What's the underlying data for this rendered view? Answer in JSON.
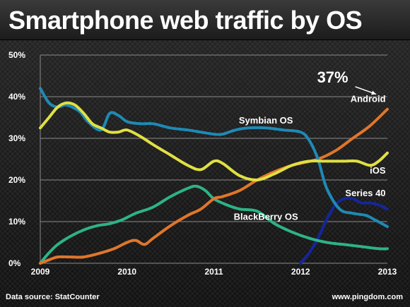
{
  "title": "Smartphone web traffic by OS",
  "source": "Data source: StatCounter",
  "site": "www.pingdom.com",
  "callout": "37%",
  "colors": {
    "Symbian OS": "#1e8ab5",
    "iOS": "#e0e043",
    "Android": "#e0762a",
    "BlackBerry OS": "#2db387",
    "Series 40": "#15269a"
  },
  "chart_data": {
    "type": "line",
    "x_ticks": [
      "2009",
      "2010",
      "2011",
      "2012",
      "2013"
    ],
    "y_ticks": [
      "0%",
      "10%",
      "20%",
      "30%",
      "40%",
      "50%"
    ],
    "ylim": [
      0,
      50
    ],
    "xlim": [
      2009,
      2013
    ],
    "grid": true,
    "series": [
      {
        "name": "Symbian OS",
        "x": [
          2009,
          2009.1,
          2009.2,
          2009.3,
          2009.45,
          2009.55,
          2009.7,
          2009.8,
          2009.9,
          2010.0,
          2010.15,
          2010.3,
          2010.5,
          2010.7,
          2010.85,
          2011.0,
          2011.1,
          2011.25,
          2011.4,
          2011.6,
          2011.8,
          2012.0,
          2012.1,
          2012.2,
          2012.3,
          2012.45,
          2012.6,
          2012.75,
          2012.85,
          2013.0
        ],
        "y": [
          42,
          38.5,
          37.5,
          38,
          36.5,
          34,
          32,
          36,
          35.5,
          34,
          33.5,
          33.5,
          32.5,
          32,
          31.5,
          31,
          31,
          32,
          32.5,
          32.5,
          32,
          31.5,
          29.5,
          25,
          18,
          13,
          12,
          11.5,
          10.5,
          8.8
        ]
      },
      {
        "name": "iOS",
        "x": [
          2009,
          2009.1,
          2009.2,
          2009.3,
          2009.4,
          2009.5,
          2009.6,
          2009.7,
          2009.8,
          2009.9,
          2010.0,
          2010.15,
          2010.3,
          2010.5,
          2010.7,
          2010.85,
          2011.0,
          2011.1,
          2011.3,
          2011.5,
          2011.7,
          2011.9,
          2012.1,
          2012.3,
          2012.5,
          2012.65,
          2012.8,
          2012.9,
          2013.0
        ],
        "y": [
          32.5,
          35,
          37.5,
          38.5,
          38,
          36,
          33.5,
          32.5,
          31.5,
          31.5,
          32,
          30.5,
          28.5,
          26,
          23.5,
          22.5,
          24.5,
          24,
          21,
          20,
          21.5,
          23.5,
          24.5,
          24.5,
          24.5,
          24.5,
          23.5,
          24.5,
          26.5
        ]
      },
      {
        "name": "Android",
        "x": [
          2009,
          2009.1,
          2009.2,
          2009.35,
          2009.5,
          2009.7,
          2009.85,
          2010.0,
          2010.1,
          2010.2,
          2010.3,
          2010.5,
          2010.7,
          2010.85,
          2011.0,
          2011.1,
          2011.3,
          2011.5,
          2011.7,
          2011.9,
          2012.0,
          2012.2,
          2012.4,
          2012.6,
          2012.8,
          2013.0
        ],
        "y": [
          0,
          0.8,
          1.5,
          1.5,
          1.5,
          2.5,
          3.5,
          5,
          5.5,
          4.5,
          6,
          9,
          11.5,
          13,
          15.5,
          16,
          17.5,
          20,
          22,
          23.5,
          24,
          25,
          27,
          30,
          33,
          37
        ]
      },
      {
        "name": "BlackBerry OS",
        "x": [
          2009,
          2009.1,
          2009.2,
          2009.35,
          2009.5,
          2009.65,
          2009.8,
          2009.95,
          2010.1,
          2010.3,
          2010.5,
          2010.7,
          2010.8,
          2010.9,
          2011.0,
          2011.15,
          2011.3,
          2011.5,
          2011.7,
          2011.9,
          2012.1,
          2012.3,
          2012.5,
          2012.7,
          2012.9,
          2013.0
        ],
        "y": [
          0,
          2.5,
          4.5,
          6.5,
          8,
          9,
          9.5,
          10.5,
          12,
          13.5,
          16,
          18,
          18.5,
          17.5,
          15.5,
          14,
          13,
          12.5,
          9.5,
          7.5,
          6,
          5,
          4.5,
          4,
          3.5,
          3.5
        ]
      },
      {
        "name": "Series 40",
        "x": [
          2012.0,
          2012.1,
          2012.2,
          2012.3,
          2012.4,
          2012.5,
          2012.6,
          2012.7,
          2012.8,
          2012.9,
          2013.0
        ],
        "y": [
          0,
          2.5,
          6,
          10.5,
          14,
          15.5,
          15.5,
          14.5,
          14.5,
          14,
          13
        ]
      }
    ]
  }
}
